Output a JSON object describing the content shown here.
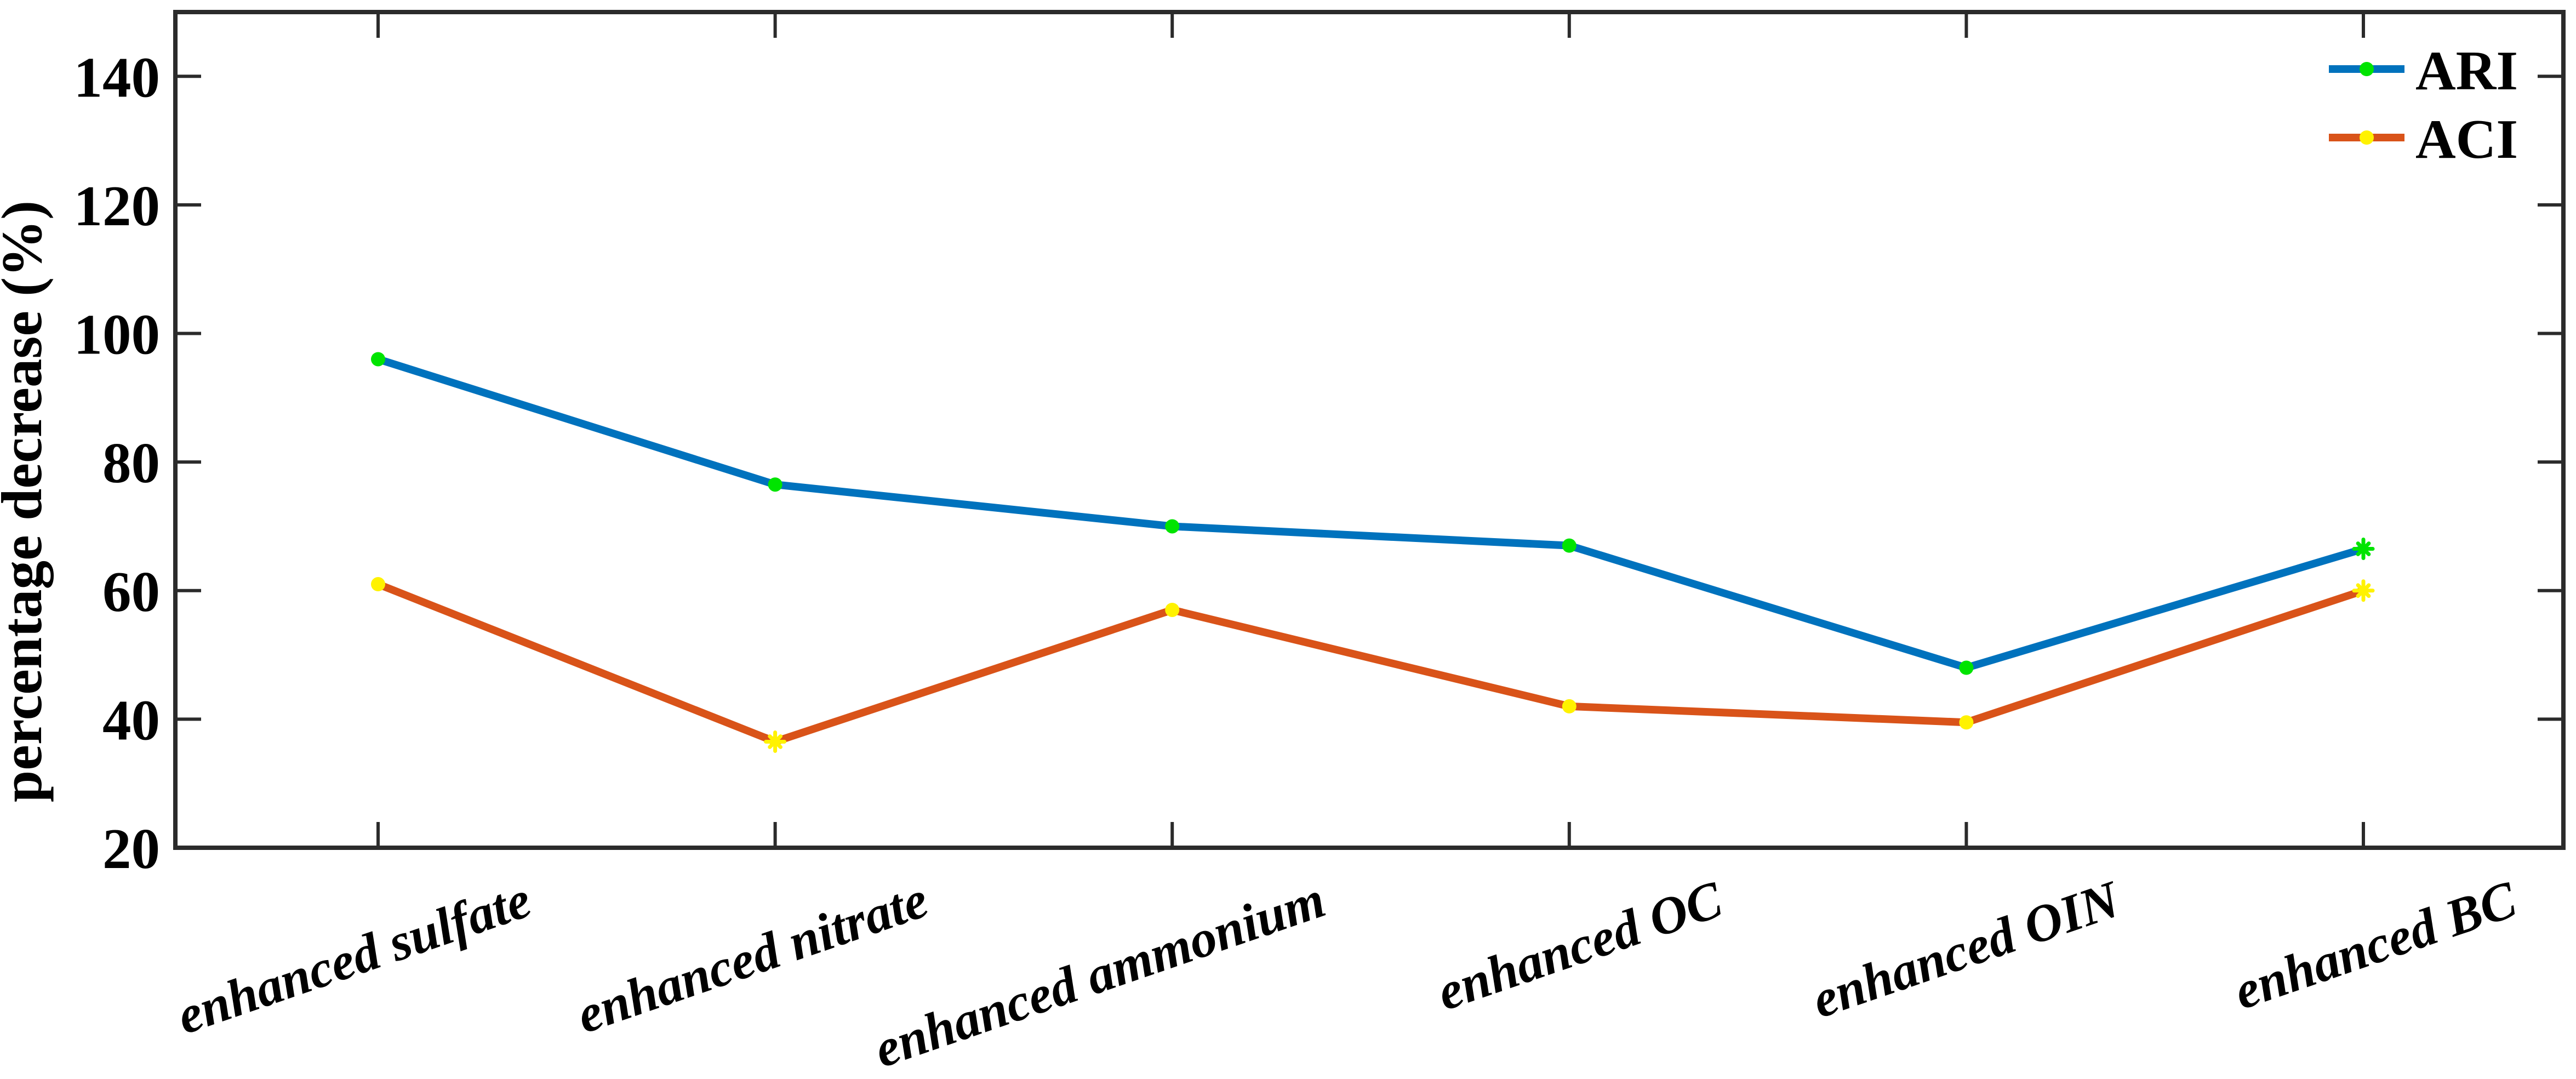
{
  "chart_data": {
    "type": "line",
    "title": "",
    "categories": [
      "enhanced sulfate",
      "enhanced nitrate",
      "enhanced ammonium",
      "enhanced OC",
      "enhanced OIN",
      "enhanced BC"
    ],
    "series": [
      {
        "name": "ARI",
        "line_color": "#0072BD",
        "marker_color": "#00E400",
        "marker_shapes": [
          "circle",
          "circle",
          "circle",
          "circle",
          "circle",
          "asterisk"
        ],
        "values": [
          96,
          76.5,
          70,
          67,
          48,
          66.5
        ]
      },
      {
        "name": "ACI",
        "line_color": "#D95319",
        "marker_color": "#FFF200",
        "marker_shapes": [
          "circle",
          "asterisk",
          "circle",
          "circle",
          "circle",
          "asterisk"
        ],
        "values": [
          61,
          36.5,
          57,
          42,
          39.5,
          60
        ]
      }
    ],
    "xlabel": "",
    "ylabel": "percentage decrease (%)",
    "yticks": [
      20,
      40,
      60,
      80,
      100,
      120,
      140
    ],
    "ylim": [
      20,
      150
    ],
    "grid": false,
    "legend": {
      "position": "top-right",
      "box": false
    },
    "axis_color": "#2b2b2b",
    "text_color": "#000000"
  }
}
